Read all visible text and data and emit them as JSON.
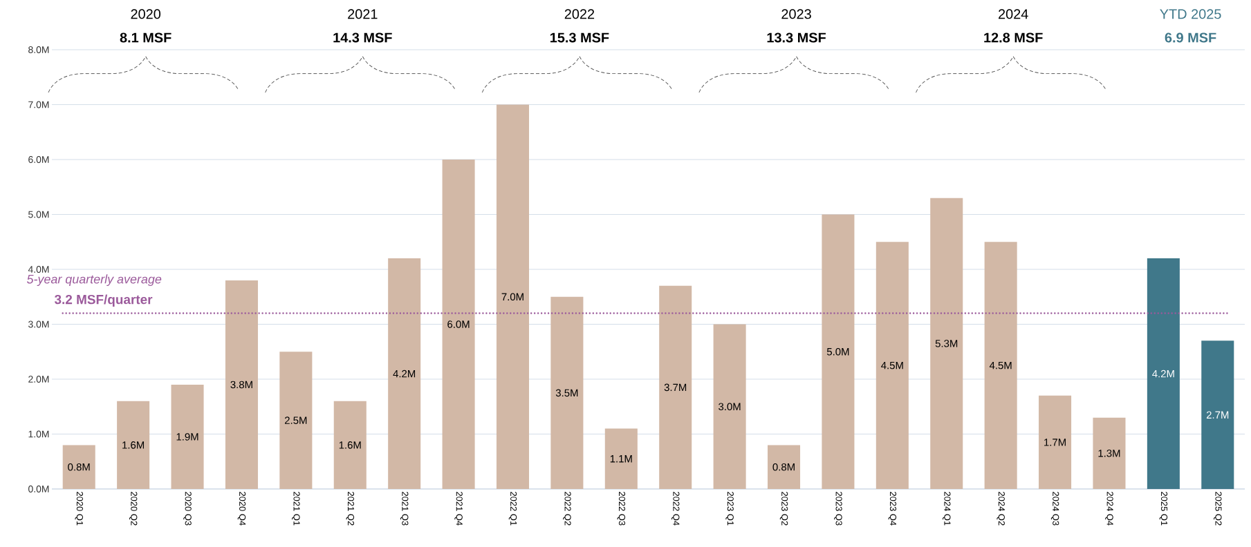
{
  "chart_data": {
    "type": "bar",
    "categories": [
      "2020 Q1",
      "2020 Q2",
      "2020 Q3",
      "2020 Q4",
      "2021 Q1",
      "2021 Q2",
      "2021 Q3",
      "2021 Q4",
      "2022 Q1",
      "2022 Q2",
      "2022 Q3",
      "2022 Q4",
      "2023 Q1",
      "2023 Q2",
      "2023 Q3",
      "2023 Q4",
      "2024 Q1",
      "2024 Q2",
      "2024 Q3",
      "2024 Q4",
      "2025 Q1",
      "2025 Q2"
    ],
    "values": [
      0.8,
      1.6,
      1.9,
      3.8,
      2.5,
      1.6,
      4.2,
      6.0,
      7.0,
      3.5,
      1.1,
      3.7,
      3.0,
      0.8,
      5.0,
      4.5,
      5.3,
      4.5,
      1.7,
      1.3,
      4.2,
      2.7
    ],
    "value_labels": [
      "0.8M",
      "1.6M",
      "1.9M",
      "3.8M",
      "2.5M",
      "1.6M",
      "4.2M",
      "6.0M",
      "7.0M",
      "3.5M",
      "1.1M",
      "3.7M",
      "3.0M",
      "0.8M",
      "5.0M",
      "4.5M",
      "5.3M",
      "4.5M",
      "1.7M",
      "1.3M",
      "4.2M",
      "2.7M"
    ],
    "colors": [
      "#d2b8a6",
      "#d2b8a6",
      "#d2b8a6",
      "#d2b8a6",
      "#d2b8a6",
      "#d2b8a6",
      "#d2b8a6",
      "#d2b8a6",
      "#d2b8a6",
      "#d2b8a6",
      "#d2b8a6",
      "#d2b8a6",
      "#d2b8a6",
      "#d2b8a6",
      "#d2b8a6",
      "#d2b8a6",
      "#d2b8a6",
      "#d2b8a6",
      "#d2b8a6",
      "#d2b8a6",
      "#40788a",
      "#40788a"
    ],
    "ylim": [
      0,
      8
    ],
    "yticks": [
      {
        "value": 0,
        "label": "0.0M"
      },
      {
        "value": 1,
        "label": "1.0M"
      },
      {
        "value": 2,
        "label": "2.0M"
      },
      {
        "value": 3,
        "label": "3.0M"
      },
      {
        "value": 4,
        "label": "4.0M"
      },
      {
        "value": 5,
        "label": "5.0M"
      },
      {
        "value": 6,
        "label": "6.0M"
      },
      {
        "value": 7,
        "label": "7.0M"
      },
      {
        "value": 8,
        "label": "8.0M"
      }
    ],
    "grid": "y",
    "ref_lines": [
      {
        "axis": "y",
        "value": 3.2,
        "label": "5-year quarterly average",
        "color": "#9b5a9b",
        "line_style": "dotted"
      }
    ],
    "annotations": [
      "2020",
      "8.1 MSF",
      "2021",
      "14.3 MSF",
      "2022",
      "15.3 MSF",
      "2023",
      "13.3 MSF",
      "2024",
      "12.8 MSF",
      "YTD 2025",
      "6.9 MSF",
      "3.2 MSF/quarter"
    ]
  }
}
